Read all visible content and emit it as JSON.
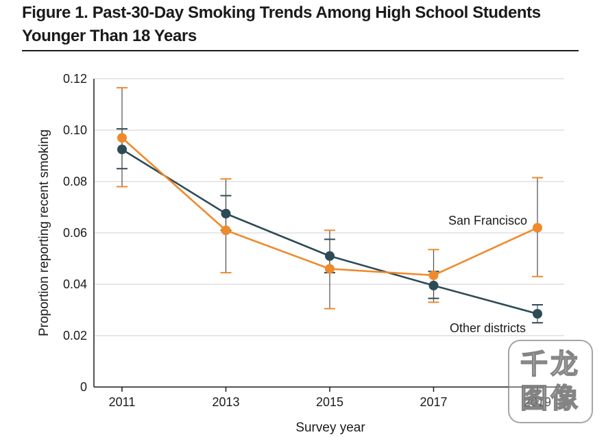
{
  "figure": {
    "title": "Figure 1. Past-30-Day Smoking Trends Among High School Students Younger Than 18 Years"
  },
  "watermark": {
    "line1": "千龙",
    "line2": "图像"
  },
  "colors": {
    "san_francisco": "#ee8a2b",
    "other_districts": "#2d4b55",
    "gridline": "#cfcfcf",
    "axis": "#1a1a1a",
    "errorbar": "#4d4d4d"
  },
  "chart_data": {
    "type": "line",
    "xlabel": "Survey year",
    "ylabel": "Proportion reporting recent smoking",
    "x": [
      2011,
      2013,
      2015,
      2017,
      2019
    ],
    "x_tick_labels": [
      "2011",
      "2013",
      "2015",
      "2017",
      "2019"
    ],
    "ylim": [
      0,
      0.12
    ],
    "y_ticks": [
      0,
      0.02,
      0.04,
      0.06,
      0.08,
      0.1,
      0.12
    ],
    "y_tick_labels": [
      "0",
      "0.02",
      "0.04",
      "0.06",
      "0.08",
      "0.10",
      "0.12"
    ],
    "grid": "horizontal",
    "legend": "direct labels",
    "series": [
      {
        "name": "San Francisco",
        "color": "#ee8a2b",
        "values": [
          0.097,
          0.061,
          0.046,
          0.0435,
          0.062
        ],
        "ci_low": [
          0.078,
          0.0445,
          0.0305,
          0.033,
          0.043
        ],
        "ci_high": [
          0.1165,
          0.081,
          0.061,
          0.0535,
          0.0815
        ]
      },
      {
        "name": "Other districts",
        "color": "#2d4b55",
        "values": [
          0.0925,
          0.0675,
          0.051,
          0.0395,
          0.0285
        ],
        "ci_low": [
          0.085,
          0.061,
          0.0445,
          0.0345,
          0.025
        ],
        "ci_high": [
          0.1005,
          0.0745,
          0.0575,
          0.045,
          0.032
        ]
      }
    ]
  }
}
